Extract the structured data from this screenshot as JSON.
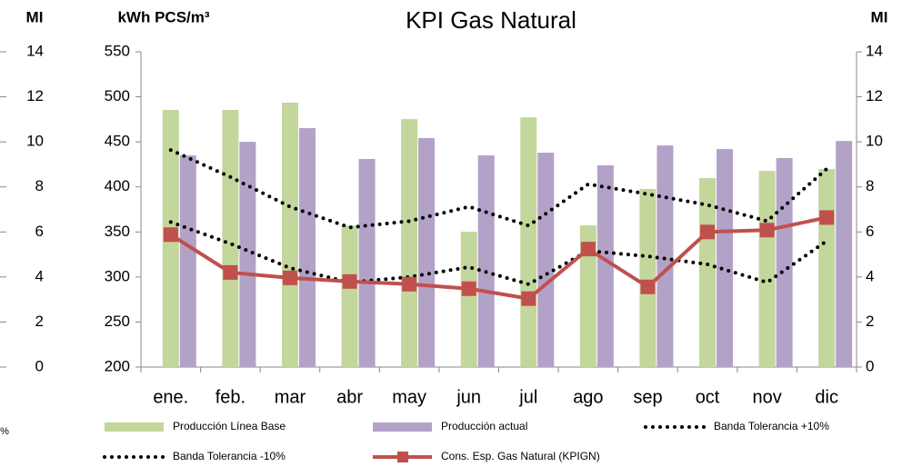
{
  "chart_data": {
    "type": "bar-line",
    "title": "KPI Gas Natural",
    "y_label": "kWh PCS/m³",
    "y2_label": "MI",
    "y_label_left": "MI",
    "left_note": "%",
    "categories": [
      "ene.",
      "feb.",
      "mar",
      "abr",
      "may",
      "jun",
      "jul",
      "ago",
      "sep",
      "oct",
      "nov",
      "dic"
    ],
    "ylim": [
      200,
      550
    ],
    "yticks": [
      200,
      250,
      300,
      350,
      400,
      450,
      500,
      550
    ],
    "y2lim": [
      0,
      14
    ],
    "y2ticks": [
      0,
      2,
      4,
      6,
      8,
      10,
      12,
      14
    ],
    "grid": false,
    "series": [
      {
        "name": "Producción Línea Base",
        "kind": "bar",
        "axis": "y2",
        "color": "#c3d69b",
        "values": [
          11.42,
          11.42,
          11.74,
          6.29,
          11.01,
          6.01,
          11.09,
          6.29,
          7.91,
          8.39,
          8.71,
          8.79
        ]
      },
      {
        "name": "Producción actual",
        "kind": "bar",
        "axis": "y2",
        "color": "#b3a2c7",
        "values": [
          9.4,
          10.0,
          10.61,
          9.24,
          10.17,
          9.4,
          9.52,
          8.96,
          9.84,
          9.68,
          9.28,
          10.04
        ]
      },
      {
        "name": "Banda Tolerancia +10%",
        "kind": "line",
        "style": "dotted",
        "color": "#000000",
        "values": [
          441,
          411,
          378,
          355,
          362,
          378,
          357,
          403,
          392,
          380,
          362,
          420
        ]
      },
      {
        "name": "Banda Tolerancia -10%",
        "kind": "line",
        "style": "dotted",
        "color": "#000000",
        "values": [
          361,
          337,
          310,
          294,
          300,
          311,
          292,
          329,
          323,
          314,
          294,
          340
        ]
      },
      {
        "name": "Cons. Esp. Gas  Natural (KPIGN)",
        "kind": "line",
        "style": "solid",
        "marker": "square",
        "color": "#c0504d",
        "values": [
          347,
          305,
          299,
          295,
          292,
          287,
          276,
          331,
          289,
          350,
          352,
          366
        ]
      }
    ]
  }
}
